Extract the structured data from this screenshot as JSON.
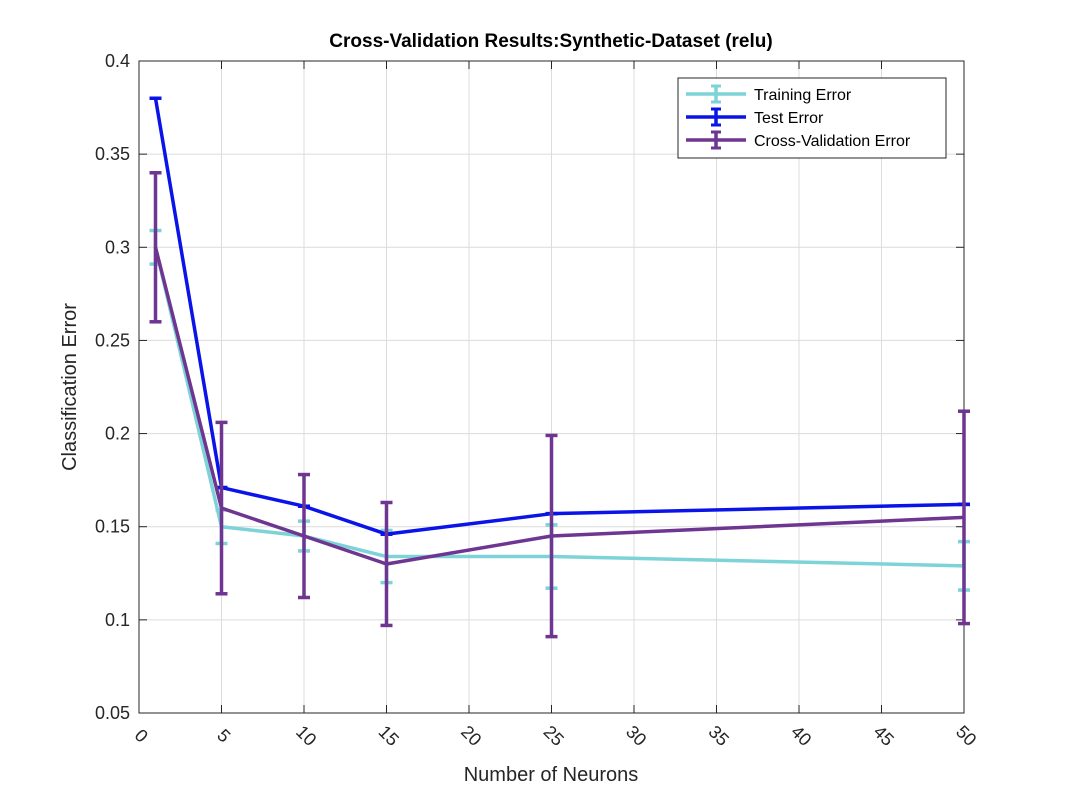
{
  "chart_data": {
    "type": "line",
    "title": "Cross-Validation Results:Synthetic-Dataset (relu)",
    "xlabel": "Number of Neurons",
    "ylabel": "Classification Error",
    "xlim": [
      0,
      50
    ],
    "ylim": [
      0.05,
      0.4
    ],
    "xticks": [
      0,
      5,
      10,
      15,
      20,
      25,
      30,
      35,
      40,
      45,
      50
    ],
    "xtick_labels": [
      "0",
      "5",
      "10",
      "15",
      "20",
      "25",
      "30",
      "35",
      "40",
      "45",
      "50"
    ],
    "yticks": [
      0.05,
      0.1,
      0.15,
      0.2,
      0.25,
      0.3,
      0.35,
      0.4
    ],
    "ytick_labels": [
      "0.05",
      "0.1",
      "0.15",
      "0.2",
      "0.25",
      "0.3",
      "0.35",
      "0.4"
    ],
    "x": [
      1,
      5,
      10,
      15,
      25,
      50
    ],
    "grid": true,
    "legend_position": "top-right",
    "series": [
      {
        "name": "Training Error",
        "color": "#7dd3d8",
        "values": [
          0.3,
          0.15,
          0.145,
          0.134,
          0.134,
          0.129
        ],
        "error_low": [
          0.291,
          0.141,
          0.137,
          0.12,
          0.117,
          0.116
        ],
        "error_high": [
          0.309,
          0.159,
          0.153,
          0.148,
          0.151,
          0.142
        ]
      },
      {
        "name": "Test Error",
        "color": "#0a14e8",
        "values": [
          0.38,
          0.171,
          0.161,
          0.146,
          0.157,
          0.162
        ],
        "error_low": [
          0.38,
          0.171,
          0.161,
          0.146,
          0.157,
          0.162
        ],
        "error_high": [
          0.38,
          0.171,
          0.161,
          0.146,
          0.157,
          0.162
        ]
      },
      {
        "name": "Cross-Validation Error",
        "color": "#6e3591",
        "values": [
          0.3,
          0.16,
          0.145,
          0.13,
          0.145,
          0.155
        ],
        "error_low": [
          0.26,
          0.114,
          0.112,
          0.097,
          0.091,
          0.098
        ],
        "error_high": [
          0.34,
          0.206,
          0.178,
          0.163,
          0.199,
          0.212
        ]
      }
    ]
  }
}
